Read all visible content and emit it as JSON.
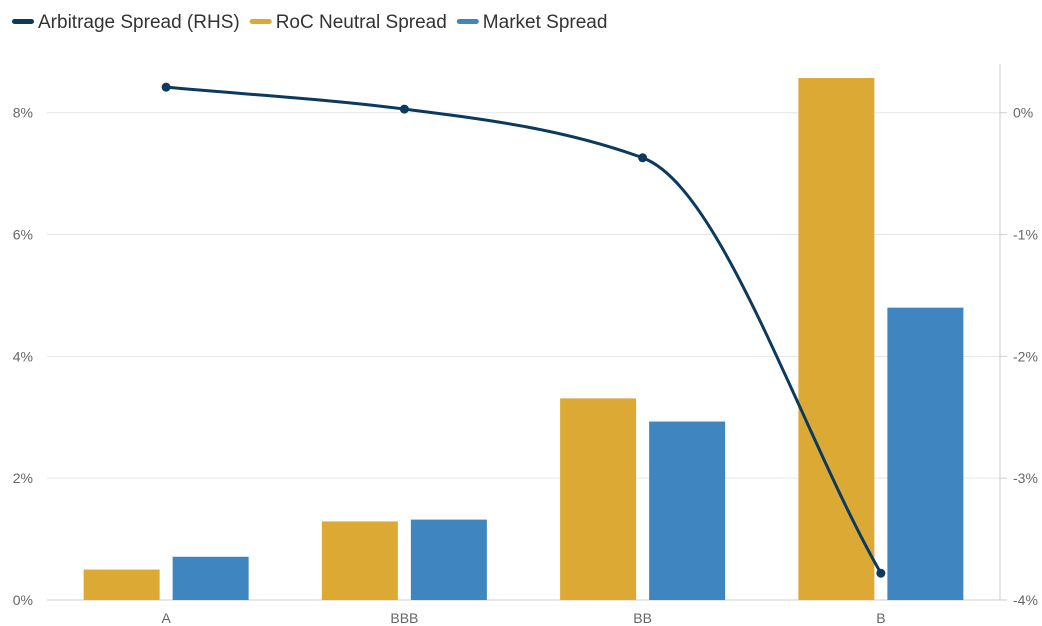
{
  "chart_data": {
    "type": "bar",
    "categories": [
      "A",
      "BBB",
      "BB",
      "B"
    ],
    "series": [
      {
        "name": "RoC Neutral Spread",
        "chart_type": "bar",
        "axis": "left",
        "color": "#DBA934",
        "values": [
          0.5,
          1.29,
          3.31,
          8.57
        ]
      },
      {
        "name": "Market Spread",
        "chart_type": "bar",
        "axis": "left",
        "color": "#3F86C0",
        "values": [
          0.71,
          1.32,
          2.93,
          4.8
        ]
      },
      {
        "name": "Arbitrage Spread (RHS)",
        "chart_type": "line",
        "axis": "right",
        "color": "#0B3A5E",
        "values": [
          0.21,
          0.03,
          -0.37,
          -3.78
        ]
      }
    ],
    "left_axis": {
      "ylim": [
        0,
        8.8
      ],
      "ticks": [
        0,
        2,
        4,
        6,
        8
      ],
      "tick_labels": [
        "0%",
        "2%",
        "4%",
        "6%",
        "8%"
      ]
    },
    "right_axis": {
      "ylim": [
        -4,
        0.4
      ],
      "ticks": [
        -4,
        -3,
        -2,
        -1,
        0
      ],
      "tick_labels": [
        "-4%",
        "-3%",
        "-2%",
        "-1%",
        "0%"
      ]
    },
    "legend": {
      "position": "top-left",
      "order": [
        "Arbitrage Spread (RHS)",
        "RoC Neutral Spread",
        "Market Spread"
      ]
    },
    "grid": true,
    "title": "",
    "xlabel": "",
    "ylabel": ""
  }
}
